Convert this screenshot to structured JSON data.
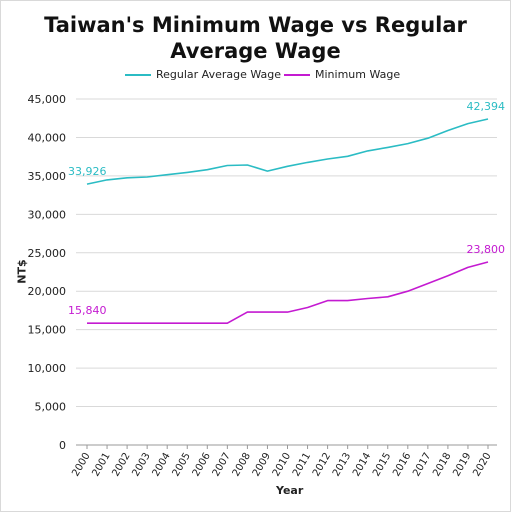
{
  "chart_data": {
    "type": "line",
    "title": "Taiwan's Minimum Wage vs Regular Average Wage",
    "title_lines": [
      "Taiwan's Minimum Wage vs Regular",
      "Average Wage"
    ],
    "xlabel": "Year",
    "ylabel": "NT$",
    "categories": [
      "2000",
      "2001",
      "2002",
      "2003",
      "2004",
      "2005",
      "2006",
      "2007",
      "2008",
      "2009",
      "2010",
      "2011",
      "2012",
      "2013",
      "2014",
      "2015",
      "2016",
      "2017",
      "2018",
      "2019",
      "2020"
    ],
    "y_ticks": [
      "0",
      "5,000",
      "10,000",
      "15,000",
      "20,000",
      "25,000",
      "30,000",
      "35,000",
      "40,000",
      "45,000"
    ],
    "ylim": [
      0,
      45000
    ],
    "grid": "horizontal",
    "legend_position": "top",
    "series": [
      {
        "name": "Regular Average Wage",
        "color": "#2bbcc4",
        "values": [
          33926,
          34480,
          34750,
          34850,
          35150,
          35450,
          35800,
          36350,
          36420,
          35620,
          36250,
          36750,
          37200,
          37550,
          38250,
          38700,
          39200,
          39900,
          40900,
          41800,
          42394
        ],
        "labels": [
          {
            "index": 0,
            "text": "33,926"
          },
          {
            "index": 20,
            "text": "42,394"
          }
        ]
      },
      {
        "name": "Minimum Wage",
        "color": "#c41ad1",
        "values": [
          15840,
          15840,
          15840,
          15840,
          15840,
          15840,
          15840,
          15840,
          17280,
          17280,
          17280,
          17880,
          18780,
          18780,
          19047,
          19273,
          20008,
          21009,
          22000,
          23100,
          23800
        ],
        "labels": [
          {
            "index": 0,
            "text": "15,840"
          },
          {
            "index": 20,
            "text": "23,800"
          }
        ]
      }
    ]
  }
}
